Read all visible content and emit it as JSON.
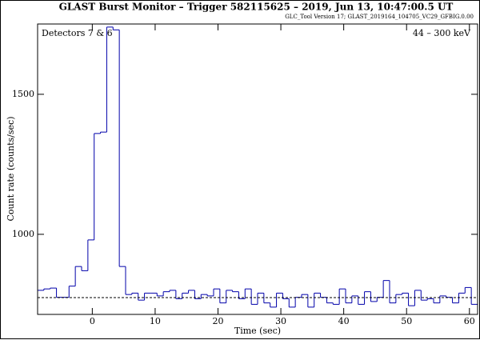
{
  "chart_data": {
    "type": "histogram",
    "title": "GLAST Burst Monitor  –  Trigger 582115625  –  2019, Jun 13, 10:47:00.5 UT",
    "subtitle": "GLC_Tool Version 17; GLAST_2019164_104705_VC29_GFBIG.0.00",
    "annotations": [
      "Detectors 7 & 6",
      "44 – 300 keV"
    ],
    "xlabel": "Time (sec)",
    "ylabel": "Count rate (counts/sec)",
    "bins": [
      -8.7,
      -7.7,
      -6.7,
      -5.7,
      -4.7,
      -3.7,
      -2.7,
      -1.7,
      -0.7,
      0.3,
      1.3,
      2.3,
      3.3,
      4.3,
      5.3,
      6.3,
      7.3,
      8.3,
      9.3,
      10.3,
      11.3,
      12.3,
      13.3,
      14.3,
      15.3,
      16.3,
      17.3,
      18.3,
      19.3,
      20.3,
      21.3,
      22.3,
      23.3,
      24.3,
      25.3,
      26.3,
      27.3,
      28.3,
      29.3,
      30.3,
      31.3,
      32.3,
      33.3,
      34.3,
      35.3,
      36.3,
      37.3,
      38.3,
      39.3,
      40.3,
      41.3,
      42.3,
      43.3,
      44.3,
      45.3,
      46.3,
      47.3,
      48.3,
      49.3,
      50.3,
      51.3,
      52.3,
      53.3,
      54.3,
      55.3,
      56.3,
      57.3,
      58.3,
      59.3,
      60.3,
      61.3
    ],
    "values": [
      800,
      805,
      808,
      775,
      775,
      815,
      885,
      870,
      980,
      1360,
      1365,
      1740,
      1730,
      885,
      785,
      790,
      765,
      790,
      790,
      780,
      795,
      800,
      770,
      790,
      800,
      770,
      785,
      780,
      805,
      755,
      800,
      795,
      770,
      805,
      750,
      790,
      755,
      740,
      790,
      770,
      740,
      775,
      785,
      740,
      790,
      775,
      755,
      750,
      805,
      755,
      780,
      750,
      795,
      760,
      775,
      835,
      755,
      785,
      790,
      745,
      800,
      765,
      770,
      755,
      780,
      775,
      755,
      790,
      810,
      750
    ],
    "color": "#0000aa",
    "background_level": 774,
    "xlim": [
      -8.7,
      61.3
    ],
    "ylim": [
      714,
      1751
    ],
    "xticks": [
      0,
      10,
      20,
      30,
      40,
      50,
      60
    ],
    "yticks": [
      1000,
      1500
    ]
  }
}
